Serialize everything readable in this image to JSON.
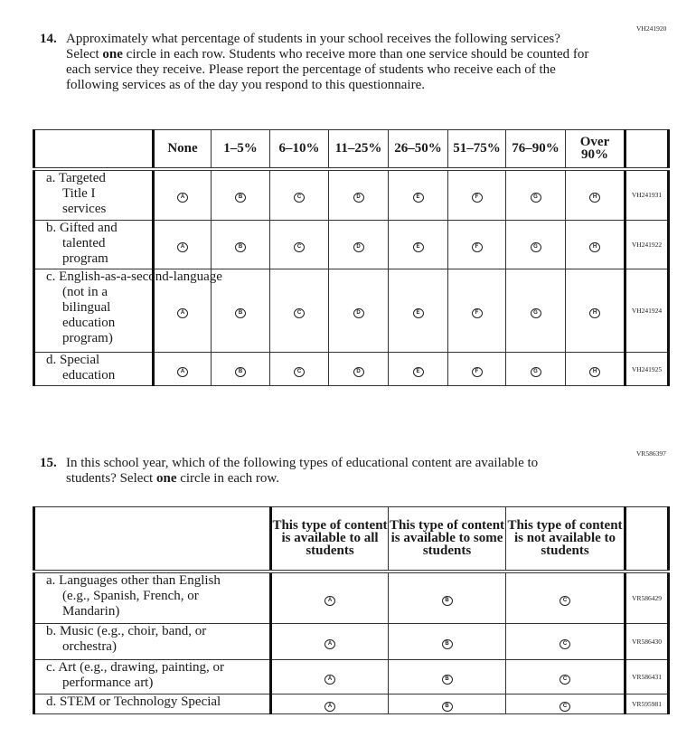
{
  "q14": {
    "code": "VH241920",
    "number": "14.",
    "text_before_bold": "Approximately what percentage of students in your school receives the following services? Select ",
    "bold": "one",
    "text_after_bold": " circle in each row. Students who receive more than one service should be counted for each service they receive. Please report the percentage of students who receive each of the following services as of the day you respond to this questionnaire.",
    "columns": [
      "None",
      "1–5%",
      "6–10%",
      "11–25%",
      "26–50%",
      "51–75%",
      "76–90%",
      "Over 90%"
    ],
    "bubble_letters": [
      "A",
      "B",
      "C",
      "D",
      "E",
      "F",
      "G",
      "H"
    ],
    "rows": [
      {
        "lines": [
          "a. Targeted",
          "Title I",
          "services"
        ],
        "code": "VH241931"
      },
      {
        "lines": [
          "b. Gifted and",
          "talented",
          "program"
        ],
        "code": "VH241922"
      },
      {
        "lines": [
          "c. English-as-a-second-language",
          "(not in a",
          "bilingual",
          "education",
          "program)"
        ],
        "code": "VH241924"
      },
      {
        "lines": [
          "d. Special",
          "education"
        ],
        "code": "VH241925"
      }
    ]
  },
  "q15": {
    "code": "VR586397",
    "number": "15.",
    "text_before_bold": "In this school year, which of the following types of educational content are available to students? Select ",
    "bold": "one",
    "text_after_bold": " circle in each row.",
    "columns": [
      "This type of content is available to all students",
      "This type of content is available to some students",
      "This type of content is not available to students"
    ],
    "bubble_letters": [
      "A",
      "B",
      "C"
    ],
    "rows": [
      {
        "lines": [
          "a. Languages other than English",
          "(e.g., Spanish, French, or",
          "Mandarin)"
        ],
        "code": "VR586429"
      },
      {
        "lines": [
          "b. Music (e.g., choir, band, or",
          "orchestra)"
        ],
        "code": "VR586430"
      },
      {
        "lines": [
          "c. Art (e.g., drawing, painting, or",
          "performance art)"
        ],
        "code": "VR586431"
      },
      {
        "lines": [
          "d. STEM or Technology Special"
        ],
        "code": "VR595981"
      }
    ]
  }
}
